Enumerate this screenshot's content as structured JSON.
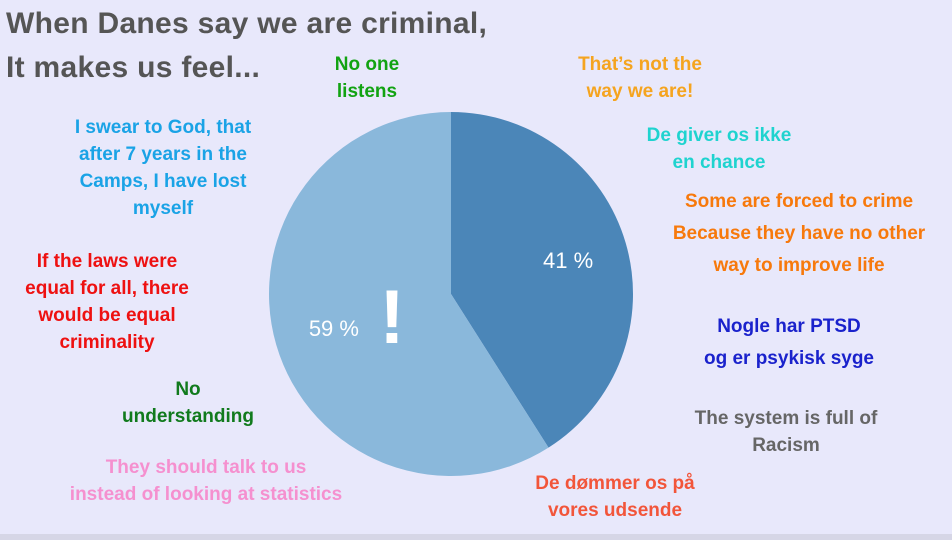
{
  "title": {
    "line1": "When Danes say we are criminal,",
    "line2": "It makes us feel..."
  },
  "quotes": {
    "no_one_listens": {
      "lines": [
        "No one",
        "listens"
      ],
      "color": "#12a312"
    },
    "not_the_way": {
      "lines": [
        "That’s not the",
        "way we are!"
      ],
      "color": "#f5a41f"
    },
    "swear_to_god": {
      "lines": [
        "I swear to God, that",
        "after 7 years in the",
        "Camps, I have lost",
        "myself"
      ],
      "color": "#1aa3e6"
    },
    "ikke_chance": {
      "lines": [
        "De giver os ikke",
        "en chance"
      ],
      "color": "#1fd3cf"
    },
    "forced_to_crime": {
      "lines": [
        "Some are forced to crime",
        "Because they have no other",
        "way to improve life"
      ],
      "color": "#f7790c"
    },
    "laws_equal": {
      "lines": [
        "If the laws were",
        "equal for all, there",
        "would be equal",
        "criminality"
      ],
      "color": "#ee1111"
    },
    "ptsd": {
      "lines": [
        "Nogle har PTSD",
        "og er psykisk syge"
      ],
      "color": "#1a22cc"
    },
    "no_understanding": {
      "lines": [
        "No",
        "understanding"
      ],
      "color": "#117a1d"
    },
    "racism": {
      "lines": [
        "The system is full of",
        "Racism"
      ],
      "color": "#666666"
    },
    "talk_to_us": {
      "lines": [
        "They should talk to us",
        "instead of looking at statistics"
      ],
      "color": "#f590cf"
    },
    "dommer": {
      "lines": [
        "De dømmer os på",
        "vores udsende"
      ],
      "color": "#f2553a"
    }
  },
  "chart_data": {
    "type": "pie",
    "title": "",
    "center_symbol": "!",
    "slices": [
      {
        "label": "41 %",
        "value": 41,
        "color": "#4b86b8"
      },
      {
        "label": "59 %",
        "value": 59,
        "color": "#8ab8db"
      }
    ],
    "start_angle_deg": 0,
    "direction": "clockwise",
    "label_color": "#ffffff"
  }
}
